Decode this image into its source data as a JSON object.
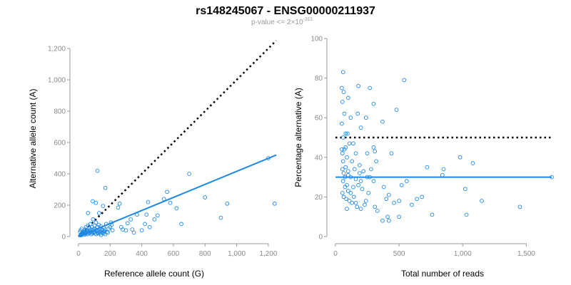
{
  "figure": {
    "title": "rs148245067 - ENSG00000211937",
    "subtitle": "p-value <= 2×10",
    "subtitle_exponent": "-311"
  },
  "colors": {
    "points": "#1e88e5",
    "fit_line": "#1e88e5",
    "reference_line": "#000000",
    "axis": "#9a9a9a"
  },
  "chart_data": [
    {
      "type": "scatter",
      "panel": "left",
      "xlabel": "Reference allele count (G)",
      "ylabel": "Alternative allele count (A)",
      "xlim": [
        0,
        1250
      ],
      "ylim": [
        0,
        1250
      ],
      "xticks": [
        0,
        200,
        400,
        600,
        800,
        1000,
        1200
      ],
      "xtick_labels": [
        "0",
        "200",
        "400",
        "600",
        "800",
        "1,000",
        "1,200"
      ],
      "yticks": [
        0,
        200,
        400,
        600,
        800,
        1000,
        1200
      ],
      "ytick_labels": [
        "0",
        "200",
        "400",
        "600",
        "800",
        "1,000",
        "1,200"
      ],
      "fit_line": {
        "x": [
          0,
          1250
        ],
        "y": [
          0,
          520
        ]
      },
      "reference_line": {
        "x": [
          0,
          1250
        ],
        "y": [
          0,
          1250
        ],
        "style": "dotted"
      },
      "points": [
        [
          12,
          8
        ],
        [
          15,
          12
        ],
        [
          18,
          10
        ],
        [
          20,
          14
        ],
        [
          22,
          18
        ],
        [
          25,
          20
        ],
        [
          10,
          30
        ],
        [
          14,
          40
        ],
        [
          20,
          50
        ],
        [
          24,
          25
        ],
        [
          28,
          30
        ],
        [
          30,
          15
        ],
        [
          32,
          22
        ],
        [
          35,
          35
        ],
        [
          38,
          12
        ],
        [
          40,
          28
        ],
        [
          42,
          45
        ],
        [
          45,
          18
        ],
        [
          48,
          60
        ],
        [
          50,
          25
        ],
        [
          52,
          35
        ],
        [
          55,
          15
        ],
        [
          58,
          40
        ],
        [
          60,
          70
        ],
        [
          62,
          30
        ],
        [
          65,
          20
        ],
        [
          68,
          55
        ],
        [
          70,
          35
        ],
        [
          72,
          25
        ],
        [
          75,
          80
        ],
        [
          78,
          45
        ],
        [
          80,
          15
        ],
        [
          82,
          30
        ],
        [
          85,
          60
        ],
        [
          88,
          20
        ],
        [
          90,
          40
        ],
        [
          92,
          110
        ],
        [
          95,
          25
        ],
        [
          98,
          50
        ],
        [
          100,
          30
        ],
        [
          102,
          70
        ],
        [
          105,
          20
        ],
        [
          108,
          45
        ],
        [
          110,
          90
        ],
        [
          112,
          15
        ],
        [
          115,
          35
        ],
        [
          118,
          60
        ],
        [
          120,
          25
        ],
        [
          122,
          40
        ],
        [
          125,
          20
        ],
        [
          128,
          75
        ],
        [
          130,
          150
        ],
        [
          132,
          30
        ],
        [
          135,
          50
        ],
        [
          138,
          20
        ],
        [
          140,
          65
        ],
        [
          142,
          10
        ],
        [
          145,
          30
        ],
        [
          148,
          45
        ],
        [
          150,
          25
        ],
        [
          152,
          40
        ],
        [
          155,
          195
        ],
        [
          158,
          20
        ],
        [
          160,
          55
        ],
        [
          162,
          30
        ],
        [
          165,
          35
        ],
        [
          168,
          15
        ],
        [
          170,
          45
        ],
        [
          175,
          80
        ],
        [
          180,
          30
        ],
        [
          185,
          25
        ],
        [
          190,
          50
        ],
        [
          200,
          60
        ],
        [
          205,
          90
        ],
        [
          210,
          75
        ],
        [
          215,
          40
        ],
        [
          90,
          225
        ],
        [
          110,
          215
        ],
        [
          60,
          150
        ],
        [
          120,
          420
        ],
        [
          170,
          310
        ],
        [
          250,
          185
        ],
        [
          260,
          210
        ],
        [
          270,
          60
        ],
        [
          280,
          45
        ],
        [
          300,
          40
        ],
        [
          310,
          85
        ],
        [
          330,
          110
        ],
        [
          340,
          45
        ],
        [
          350,
          25
        ],
        [
          370,
          140
        ],
        [
          400,
          40
        ],
        [
          420,
          80
        ],
        [
          430,
          140
        ],
        [
          440,
          220
        ],
        [
          450,
          60
        ],
        [
          480,
          110
        ],
        [
          500,
          135
        ],
        [
          540,
          240
        ],
        [
          560,
          285
        ],
        [
          580,
          215
        ],
        [
          620,
          180
        ],
        [
          650,
          80
        ],
        [
          700,
          400
        ],
        [
          800,
          250
        ],
        [
          900,
          120
        ],
        [
          940,
          210
        ],
        [
          1200,
          500
        ],
        [
          1240,
          210
        ]
      ]
    },
    {
      "type": "scatter",
      "panel": "right",
      "xlabel": "Total number of reads",
      "ylabel": "Percentage alternative (A)",
      "xlim": [
        0,
        1700
      ],
      "ylim": [
        0,
        100
      ],
      "xticks": [
        0,
        500,
        1000,
        1500
      ],
      "xtick_labels": [
        "0",
        "500",
        "1,000",
        "1,500"
      ],
      "yticks": [
        0,
        20,
        40,
        60,
        80,
        100
      ],
      "ytick_labels": [
        "0",
        "20",
        "40",
        "60",
        "80",
        "100"
      ],
      "fit_line": {
        "x": [
          0,
          1700
        ],
        "y": [
          30,
          30
        ]
      },
      "reference_line": {
        "x": [
          0,
          1700
        ],
        "y": [
          50,
          50
        ],
        "style": "dotted"
      },
      "points": [
        [
          60,
          83
        ],
        [
          540,
          79
        ],
        [
          50,
          75
        ],
        [
          65,
          73
        ],
        [
          180,
          76
        ],
        [
          270,
          75
        ],
        [
          300,
          67
        ],
        [
          55,
          68
        ],
        [
          100,
          70
        ],
        [
          175,
          62
        ],
        [
          480,
          64
        ],
        [
          120,
          60
        ],
        [
          240,
          60
        ],
        [
          50,
          57
        ],
        [
          70,
          62
        ],
        [
          370,
          58
        ],
        [
          80,
          52
        ],
        [
          95,
          52
        ],
        [
          200,
          55
        ],
        [
          60,
          50
        ],
        [
          80,
          45
        ],
        [
          110,
          47
        ],
        [
          140,
          47
        ],
        [
          50,
          44
        ],
        [
          70,
          44
        ],
        [
          55,
          42
        ],
        [
          90,
          40
        ],
        [
          60,
          38
        ],
        [
          130,
          38
        ],
        [
          160,
          42
        ],
        [
          250,
          42
        ],
        [
          300,
          45
        ],
        [
          310,
          43
        ],
        [
          440,
          42
        ],
        [
          80,
          35
        ],
        [
          55,
          34
        ],
        [
          100,
          33
        ],
        [
          150,
          34
        ],
        [
          190,
          32
        ],
        [
          220,
          33
        ],
        [
          270,
          30
        ],
        [
          120,
          30
        ],
        [
          60,
          28
        ],
        [
          90,
          26
        ],
        [
          75,
          25
        ],
        [
          140,
          25
        ],
        [
          100,
          23
        ],
        [
          55,
          22
        ],
        [
          65,
          20
        ],
        [
          85,
          19
        ],
        [
          110,
          18
        ],
        [
          130,
          17
        ],
        [
          160,
          17
        ],
        [
          170,
          15
        ],
        [
          90,
          14
        ],
        [
          200,
          14
        ],
        [
          230,
          16
        ],
        [
          310,
          15
        ],
        [
          330,
          13
        ],
        [
          380,
          25
        ],
        [
          400,
          19
        ],
        [
          420,
          21
        ],
        [
          460,
          17
        ],
        [
          500,
          18
        ],
        [
          520,
          26
        ],
        [
          560,
          28
        ],
        [
          600,
          16
        ],
        [
          640,
          19
        ],
        [
          680,
          20
        ],
        [
          720,
          35
        ],
        [
          840,
          31
        ],
        [
          850,
          34
        ],
        [
          980,
          40
        ],
        [
          1020,
          24
        ],
        [
          1080,
          37
        ],
        [
          1150,
          18
        ],
        [
          1450,
          15
        ],
        [
          1700,
          30
        ],
        [
          1030,
          11
        ],
        [
          760,
          11
        ],
        [
          370,
          8
        ],
        [
          410,
          10
        ],
        [
          420,
          8
        ],
        [
          500,
          10
        ],
        [
          300,
          28
        ],
        [
          260,
          22
        ],
        [
          240,
          18
        ],
        [
          210,
          24
        ],
        [
          75,
          30
        ],
        [
          120,
          22
        ],
        [
          145,
          20
        ],
        [
          180,
          26
        ],
        [
          200,
          28
        ],
        [
          160,
          29
        ],
        [
          100,
          31
        ],
        [
          65,
          32
        ],
        [
          190,
          36
        ],
        [
          250,
          30
        ],
        [
          280,
          34
        ],
        [
          320,
          38
        ]
      ]
    }
  ]
}
